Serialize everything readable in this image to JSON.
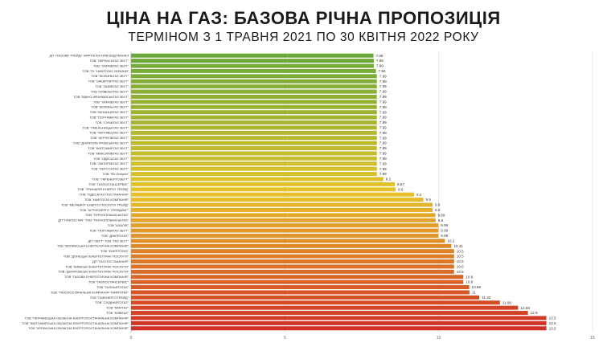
{
  "header": {
    "title": "ЦІНА НА ГАЗ: БАЗОВА РІЧНА ПРОПОЗИЦІЯ",
    "subtitle": "ТЕРМІНОМ З 1 ТРАВНЯ 2021 ПО 30 КВІТНЯ 2022 РОКУ"
  },
  "chart_data": {
    "type": "bar",
    "orientation": "horizontal",
    "title": "ЦІНА НА ГАЗ: БАЗОВА РІЧНА ПРОПОЗИЦІЯ",
    "subtitle": "ТЕРМІНОМ З 1 ТРАВНЯ 2021 ПО 30 КВІТНЯ 2022 РОКУ",
    "xlabel": "",
    "ylabel": "",
    "xlim": [
      0,
      15
    ],
    "x_ticks": [
      0,
      5,
      10,
      15
    ],
    "grid": true,
    "color_low": "#6aa83a",
    "color_mid": "#e8c22a",
    "color_high": "#cf2f25",
    "categories": [
      "ДП «ГАЗОВА ТРЕЙД» НАФТОГАЗ КИЇВ ВОДОКАНАЛ",
      "ТОВ \"ЧЕРКАСИГАЗ ЗБУТ\"",
      "ТОВ \"ХАРКІВГАЗ ЗБУТ\"",
      "ТОВ \"ГК \"НАФТОГАЗ УКРАЇНИ\"",
      "ТОВ \"ВОЛИНЬГАЗ ЗБУТ\"",
      "ТОВ \"ЗАКАРПАТГАЗ ЗБУТ\"",
      "ТОВ \"ЛЬВІВГАЗ ЗБУТ\"",
      "ТОВ \"КИЇВОБЛГАЗ ЗБУТ\"",
      "ТОВ \"ІВАНО-ФРАНКІВСЬКГАЗ ЗБУТ\"",
      "ТОВ \"ХАРКІВГАЗ ЗБУТ\"",
      "ТОВ \"ВОЛИНЬГАЗ ЗБУТ\"",
      "ТОВ \"ВІННИЦЯГАЗ ЗБУТ\"",
      "ТОВ \"ПОЛТАВАГАЗ ЗБУТ\"",
      "ТОВ \"СУМИГАЗ ЗБУТ\"",
      "ТОВ \"ХМЕЛЬНИЦЬКГАЗ ЗБУТ\"",
      "ТОВ \"ЧЕРНІВЦІГАЗ ЗБУТ\"",
      "ТОВ \"ЧЕРНІГІВГАЗ ЗБУТ\"",
      "ТОВ \"ДНІПРОПЕТРОВСЬКГАЗ ЗБУТ\"",
      "ТОВ \"ЖИТОМИРГАЗ ЗБУТ\"",
      "ТОВ \"МИКОЛАЇВГАЗ ЗБУТ\"",
      "ТОВ \"ОДЕСАГАЗ ЗБУТ\"",
      "ТОВ \"ЗАПОРІЖГАЗ ЗБУТ\"",
      "ТОВ \"ХЕРСОНГАЗ ЗБУТ\"",
      "ТОВ \"ФК Енергія\"",
      "ТОВ \"УКРЕНЕРГОЗБУТ\"",
      "ТОВ \"ГАЗПОСТАЧСЕРВІС\"",
      "ТОВ \"ТРИНАРІЯ ЕНЕРГО ТРЕЙД\"",
      "ТОВ \"ОДЕСАГАЗ ПОСТАЧАННЯ\"",
      "ТОВ \"НАФТОГАЗ КОМПАНІЯ\"",
      "ТОВ \"МЕГАВАТТ ЕНЕРГО ПОСЛУГИ ТРЕЙД\"",
      "ТОВ \"АГРОЕНЕРГО ТРЕЙДИНГ\"",
      "ТОВ \"ТЕРНОПІЛЬМІСЬКГАЗ\"",
      "ДП \"ГАЗПОСТАЧ\" ТОВ \"ТЕРНОПІЛЬМІСЬКГАЗ\"",
      "ТОВ \"АЗАЛІЯ\"",
      "ТОВ \"ПОЛТАВАГАЗ ЗБУТ\"",
      "ТОВ \"ДНІПРОГАЗ\"",
      "ДП \"ЗБУТ\" ТОВ \"ГАЗ ЗБУТ\"",
      "ТОВ \"ВОЛИНСЬКА ЕНЕРГЕТИЧНА КОМПАНІЯ\"",
      "ТОВ \"ЕНЕРГОГАЗ\"",
      "ТОВ \"ДОНЕЦЬКІ ЕНЕРГЕТИЧНІ ПОСЛУГИ\"",
      "ДП \"ГАЗ ПОСТАЧАННЯ\"",
      "ТОВ \"КИЇВСЬКІ ЕНЕРГЕТИЧНІ ПОСЛУГИ\"",
      "ТОВ \"ДНІПРОВСЬКІ ЕНЕРГЕТИЧНІ ПОСЛУГИ\"",
      "ТОВ \"ГАЗОВА ЕНЕРГЕТИЧНА КОМПАНІЯ\"",
      "ТОВ \"ГАЗПОСТАЧСЕРВІС\"",
      "ТОВ \"ГАЛНАФТОГАЗ\"",
      "ТОВ \"ГАЗОПОСТАЧАЛЬНА КОМПАНІЯ \"НАФТОГАЗ\"",
      "ТОВ \"ГАЗЕНЕРГОТРЕЙД\"",
      "ТОВ \"СХІДНАФТОГАЗ\"",
      "ТОВ \"МИРГАЗ\"",
      "ТОВ \"КИЇВГАЗ\"",
      "ТОВ \"ЧЕРНІВЕЦЬКА ОБЛАСНА ЕНЕРГОПОСТАЧАЛЬНА КОМПАНІЯ\"",
      "ТОВ \"ЖИТОМИРСЬКА ОБЛАСНА ЕНЕРГОПОСТАЧАЛЬНА КОМПАНІЯ\"",
      "ТОВ \"ЧЕРКАСЬКА ОБЛАСНА ЕНЕРГОПОСТАЧАЛЬНА КОМПАНІЯ\""
    ],
    "values": [
      7.88,
      7.89,
      7.89,
      7.96,
      7.99,
      7.99,
      7.99,
      7.99,
      7.99,
      7.99,
      7.99,
      7.99,
      7.99,
      7.99,
      7.99,
      7.99,
      7.99,
      7.99,
      7.99,
      7.99,
      7.99,
      7.99,
      7.99,
      7.99,
      8.2,
      8.57,
      8.6,
      9.2,
      9.5,
      9.8,
      9.8,
      9.89,
      9.9,
      9.99,
      9.99,
      9.99,
      10.2,
      10.41,
      10.5,
      10.5,
      10.5,
      10.5,
      10.5,
      10.8,
      10.8,
      10.99,
      11,
      11.32,
      11.99,
      12.58,
      12.9,
      13.5,
      13.5,
      13.5
    ],
    "value_labels": [
      "7.88",
      "7.89",
      "7.89",
      "7.96",
      "7.99",
      "7.99",
      "7.99",
      "7.99",
      "7.99",
      "7.99",
      "7.99",
      "7.99",
      "7.99",
      "7.99",
      "7.99",
      "7.99",
      "7.99",
      "7.99",
      "7.99",
      "7.99",
      "7.99",
      "7.99",
      "7.99",
      "7.99",
      "8.2",
      "8.57",
      "8.6",
      "9.2",
      "9.5",
      "9.8",
      "9.8",
      "9.89",
      "9.9",
      "9.99",
      "9.99",
      "9.99",
      "10.2",
      "10.41",
      "10.5",
      "10.5",
      "10.5",
      "10.5",
      "10.5",
      "10.8",
      "10.8",
      "10.99",
      "11",
      "11.32",
      "11.99",
      "12.58",
      "12.9",
      "13.5",
      "13.5",
      "13.5"
    ]
  }
}
